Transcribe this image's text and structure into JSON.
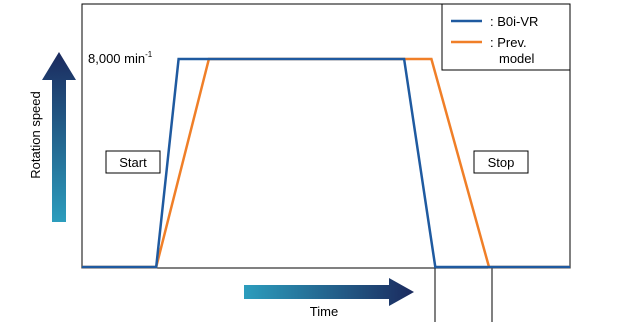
{
  "chart_data": {
    "type": "line",
    "title": "",
    "xlabel": "Time",
    "ylabel": "Rotation speed",
    "y_value_label": "8,000 min",
    "y_value_unit_exponent": "-1",
    "y_level": 8000,
    "ylim": [
      0,
      8000
    ],
    "xlim": [
      0,
      100
    ],
    "grid": false,
    "legend_position": "top-right",
    "annotations": {
      "start": "Start",
      "stop": "Stop"
    },
    "series": [
      {
        "name": ": B0i-VR",
        "color": "#1f5aa0",
        "x": [
          0,
          15.2,
          19.8,
          66.0,
          72.4,
          100
        ],
        "y": [
          0,
          0,
          8000,
          8000,
          0,
          0
        ]
      },
      {
        "name": ": Prev. model",
        "color": "#f07f28",
        "x": [
          0,
          15.2,
          26.0,
          71.6,
          83.4,
          100
        ],
        "y": [
          0,
          0,
          8000,
          8000,
          0,
          0
        ]
      }
    ],
    "legend": [
      {
        "line1": ": B0i-VR",
        "line2": ""
      },
      {
        "line1": ": Prev.",
        "line2": "model"
      }
    ],
    "colors": {
      "axis": "#000000",
      "arrow_start": "#2c9dbd",
      "arrow_end": "#1b2a5e"
    }
  }
}
